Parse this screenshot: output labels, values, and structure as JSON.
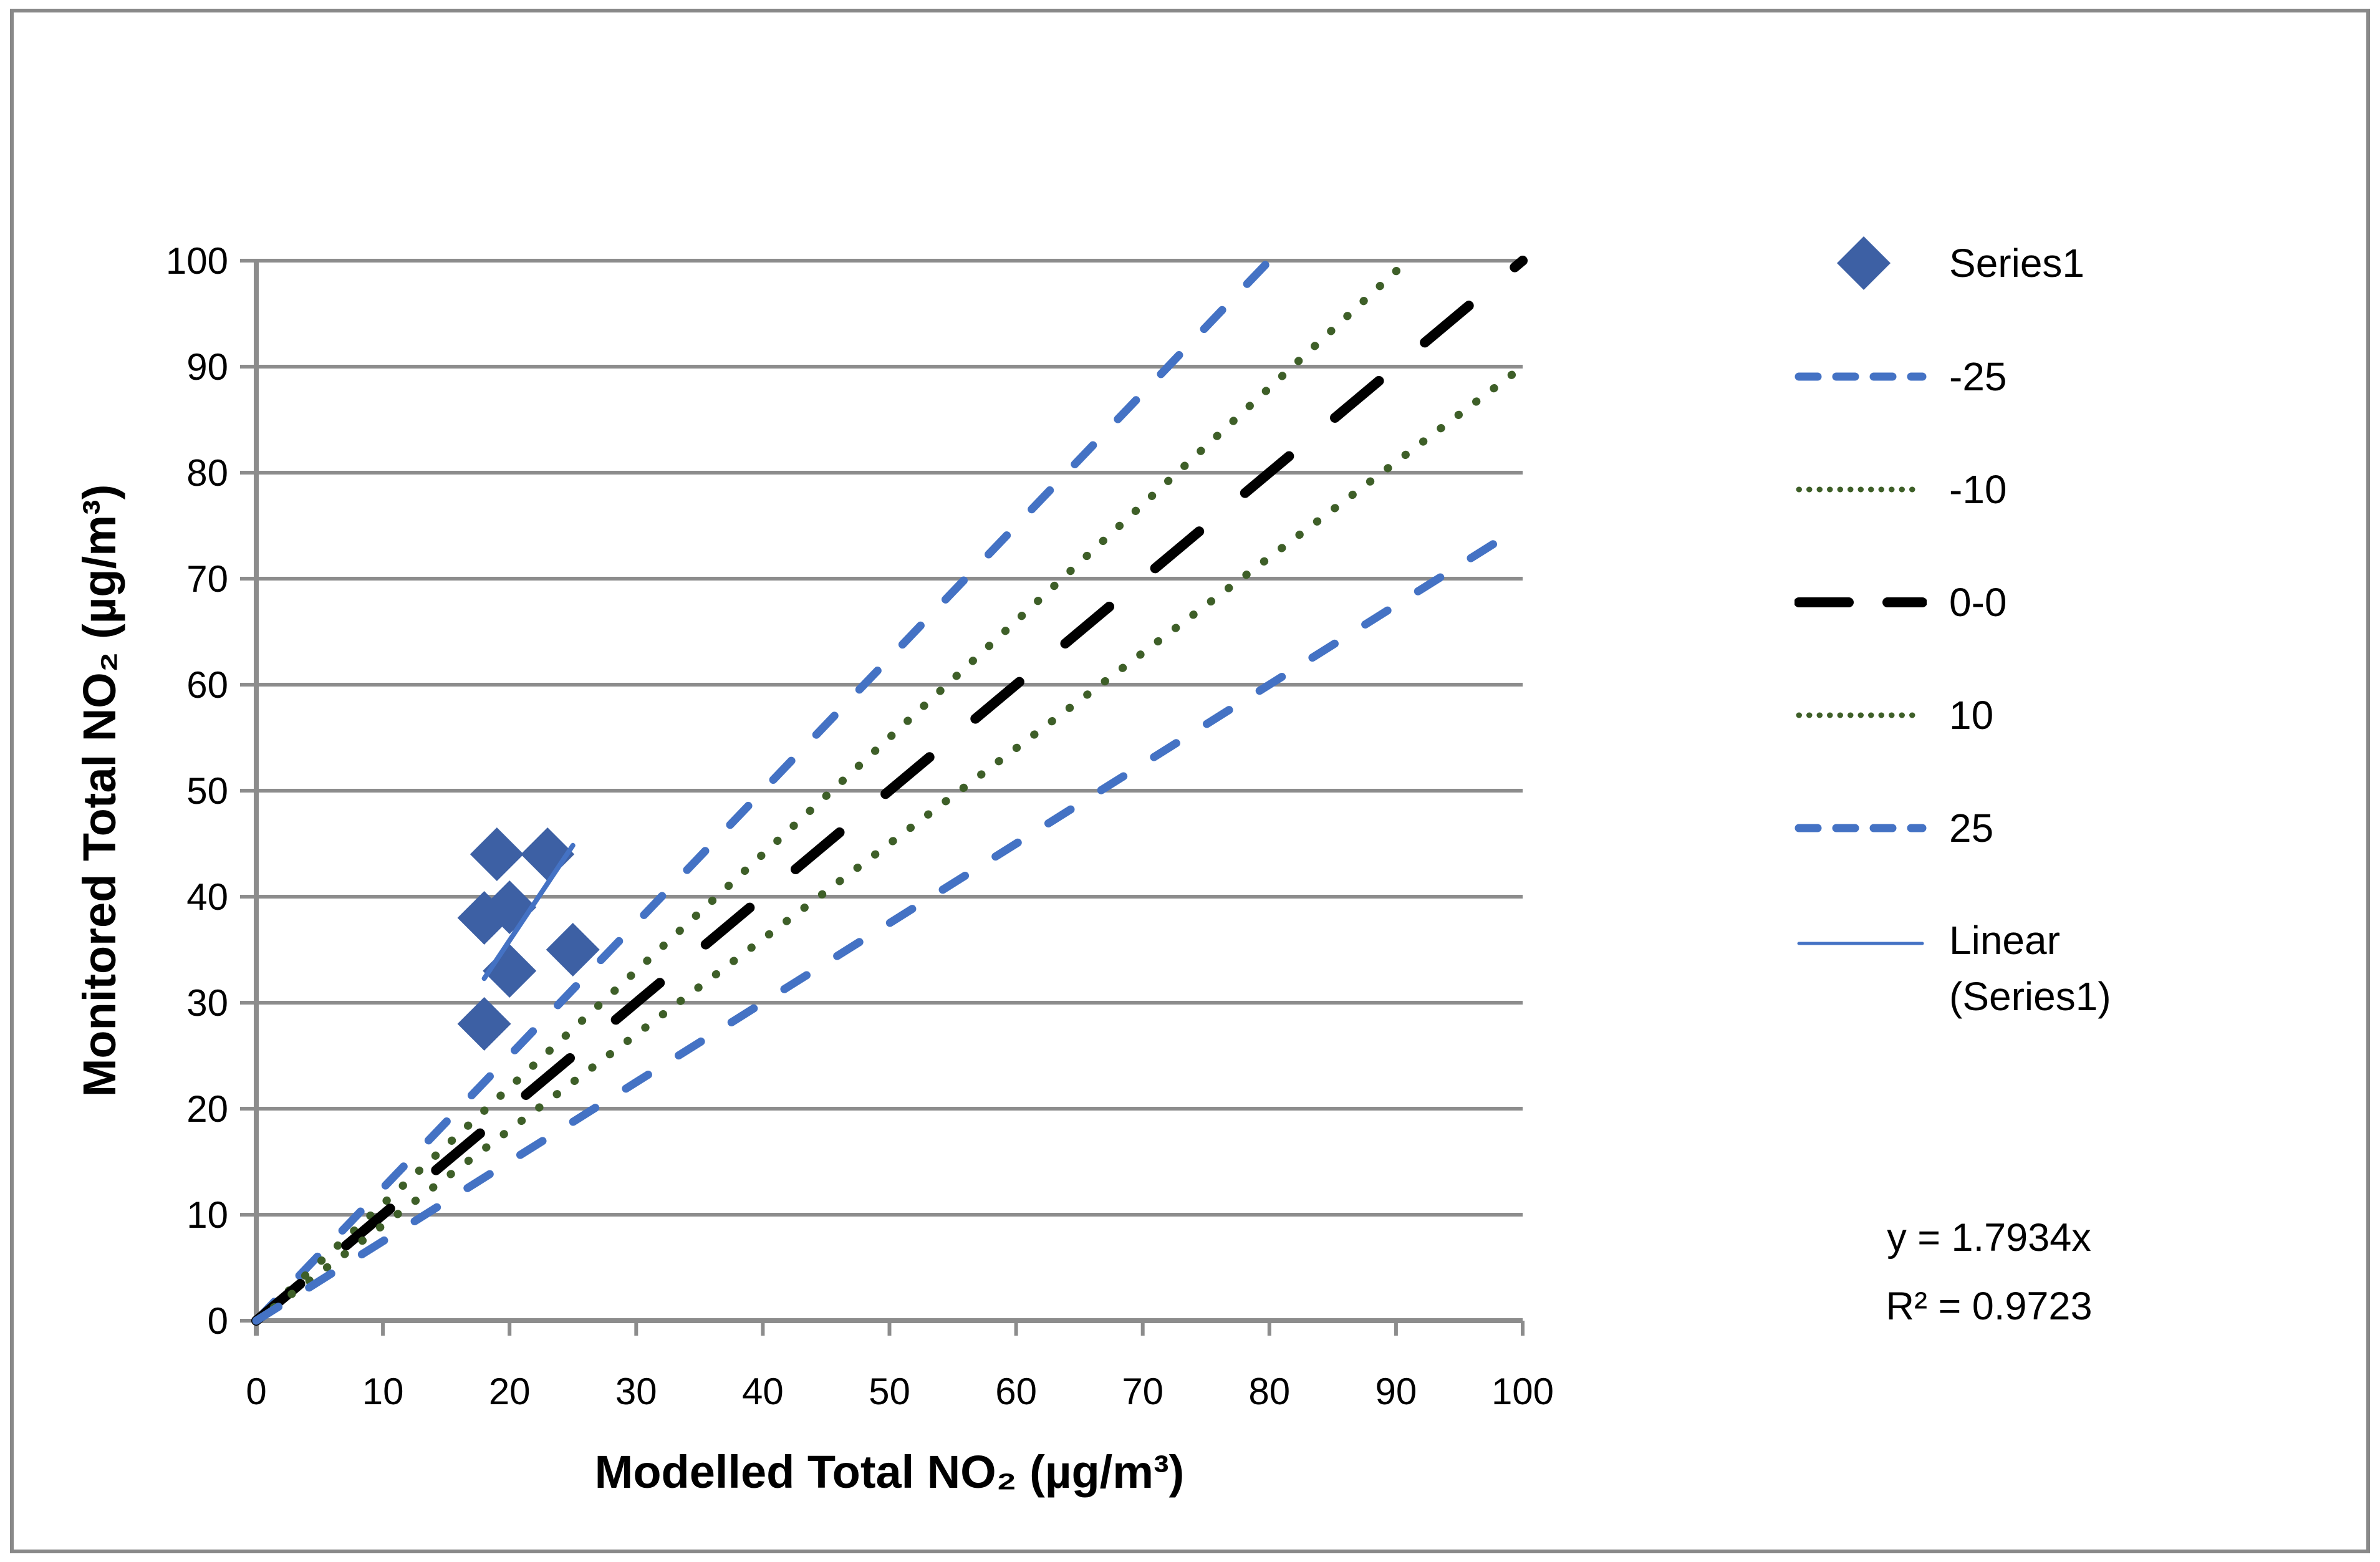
{
  "chart_data": {
    "type": "scatter",
    "title": "",
    "xlabel": "Modelled Total NO₂ (µg/m³)",
    "ylabel": "Monitored Total NO₂ (µg/m³)",
    "xlim": [
      0,
      100
    ],
    "ylim": [
      0,
      100
    ],
    "x_ticks": [
      0,
      10,
      20,
      30,
      40,
      50,
      60,
      70,
      80,
      90,
      100
    ],
    "y_ticks": [
      0,
      10,
      20,
      30,
      40,
      50,
      60,
      70,
      80,
      90,
      100
    ],
    "grid": "horizontal-major",
    "legend_position": "right",
    "series": [
      {
        "name": "Series1",
        "type": "scatter",
        "marker": "diamond",
        "color": "#3D60A4",
        "points": [
          [
            19,
            44
          ],
          [
            23,
            44
          ],
          [
            18,
            38
          ],
          [
            20,
            39
          ],
          [
            25,
            35
          ],
          [
            20,
            33
          ],
          [
            18,
            28
          ]
        ]
      }
    ],
    "reference_lines": [
      {
        "name": "-25",
        "slope": 1.25,
        "style": "dashed",
        "color": "#4472C4"
      },
      {
        "name": "-10",
        "slope": 1.1,
        "style": "dotted",
        "color": "#3E5F28"
      },
      {
        "name": "0-0",
        "slope": 1.0,
        "style": "long-dash",
        "color": "#000000"
      },
      {
        "name": "10",
        "slope": 0.9,
        "style": "dotted",
        "color": "#3E5F28"
      },
      {
        "name": "25",
        "slope": 0.75,
        "style": "dashed",
        "color": "#4472C4"
      }
    ],
    "trendline": {
      "name": "Linear (Series1)",
      "slope": 1.7934,
      "x_range": [
        18,
        25
      ],
      "style": "solid",
      "color": "#4472C4"
    },
    "equation": {
      "line1": "y = 1.7934x",
      "line2": "R² = 0.9723"
    }
  },
  "legend": {
    "items": [
      {
        "label": "Series1",
        "sample": "diamond-marker",
        "color": "#3D60A4"
      },
      {
        "label": "-25",
        "sample": "dashed-line",
        "color": "#4472C4"
      },
      {
        "label": "-10",
        "sample": "dotted-line",
        "color": "#3E5F28"
      },
      {
        "label": "0-0",
        "sample": "long-dash-line",
        "color": "#000000"
      },
      {
        "label": "10",
        "sample": "dotted-line",
        "color": "#3E5F28"
      },
      {
        "label": "25",
        "sample": "dashed-line",
        "color": "#4472C4"
      },
      {
        "label": "Linear (Series1)",
        "sample": "solid-line",
        "color": "#4472C4"
      }
    ]
  },
  "colors": {
    "marker_blue": "#3D60A4",
    "line_blue": "#4472C4",
    "line_green": "#3E5F28",
    "line_black": "#000000",
    "grid_gray": "#8C8C8C",
    "frame_gray": "#898989",
    "text": "#000000",
    "background": "#FFFFFF"
  }
}
